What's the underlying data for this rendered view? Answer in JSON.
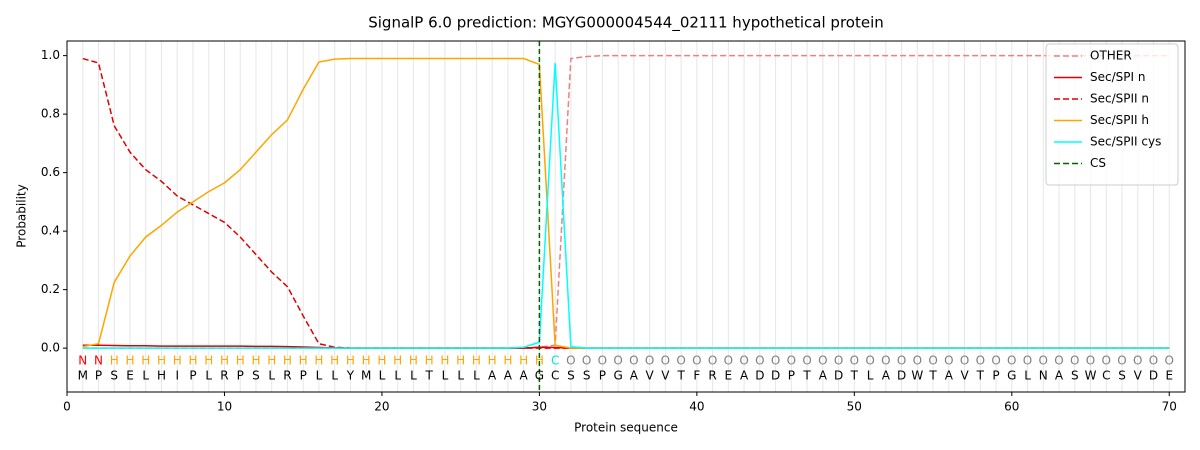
{
  "chart_data": {
    "type": "line",
    "title": "SignalP 6.0 prediction: MGYG000004544_02111 hypothetical protein",
    "xlabel": "Protein sequence",
    "ylabel": "Probability",
    "x": [
      1,
      2,
      3,
      4,
      5,
      6,
      7,
      8,
      9,
      10,
      11,
      12,
      13,
      14,
      15,
      16,
      17,
      18,
      19,
      20,
      21,
      22,
      23,
      24,
      25,
      26,
      27,
      28,
      29,
      30,
      31,
      32,
      33,
      34,
      35,
      36,
      37,
      38,
      39,
      40,
      41,
      42,
      43,
      44,
      45,
      46,
      47,
      48,
      49,
      50,
      51,
      52,
      53,
      54,
      55,
      56,
      57,
      58,
      59,
      60,
      61,
      62,
      63,
      64,
      65,
      66,
      67,
      68,
      69,
      70
    ],
    "xlim": [
      0,
      71
    ],
    "xticks": [
      0,
      10,
      20,
      30,
      40,
      50,
      60,
      70
    ],
    "ylim": [
      -0.15,
      1.05
    ],
    "yticks": [
      {
        "value": 0,
        "label": "0.0"
      },
      0.2,
      0.4,
      0.6,
      0.8,
      {
        "value": 1,
        "label": "1.0"
      }
    ],
    "grid": true,
    "legend": "upper right",
    "series": [
      {
        "name": "OTHER",
        "color": "#f08080",
        "dashed": true,
        "values": [
          0,
          0,
          0,
          0,
          0,
          0,
          0,
          0,
          0,
          0,
          0,
          0,
          0,
          0,
          0,
          0,
          0,
          0,
          0,
          0,
          0,
          0,
          0,
          0,
          0,
          0,
          0,
          0,
          0,
          0.003,
          0.01,
          0.99,
          0.997,
          1,
          1,
          1,
          1,
          1,
          1,
          1,
          1,
          1,
          1,
          1,
          1,
          1,
          1,
          1,
          1,
          1,
          1,
          1,
          1,
          1,
          1,
          1,
          1,
          1,
          1,
          1,
          1,
          1,
          1,
          1,
          1,
          1,
          1,
          1,
          1,
          1
        ]
      },
      {
        "name": "Sec/SPI n",
        "color": "#e00000",
        "dashed": false,
        "values": [
          0.01,
          0.01,
          0.009,
          0.008,
          0.008,
          0.007,
          0.007,
          0.007,
          0.007,
          0.007,
          0.007,
          0.006,
          0.006,
          0.005,
          0.004,
          0.002,
          0.001,
          0,
          0,
          0,
          0,
          0,
          0,
          0,
          0,
          0,
          0,
          0,
          0,
          0.003,
          0.002,
          0,
          0,
          0,
          0,
          0,
          0,
          0,
          0,
          0,
          0,
          0,
          0,
          0,
          0,
          0,
          0,
          0,
          0,
          0,
          0,
          0,
          0,
          0,
          0,
          0,
          0,
          0,
          0,
          0,
          0,
          0,
          0,
          0,
          0,
          0,
          0,
          0,
          0,
          0
        ]
      },
      {
        "name": "Sec/SPII n",
        "color": "#e00000",
        "dashed": true,
        "values": [
          0.99,
          0.975,
          0.76,
          0.67,
          0.61,
          0.57,
          0.52,
          0.49,
          0.46,
          0.43,
          0.38,
          0.32,
          0.26,
          0.21,
          0.11,
          0.015,
          0.003,
          0,
          0,
          0,
          0,
          0,
          0,
          0,
          0,
          0,
          0,
          0,
          0,
          0,
          0,
          0,
          0,
          0,
          0,
          0,
          0,
          0,
          0,
          0,
          0,
          0,
          0,
          0,
          0,
          0,
          0,
          0,
          0,
          0,
          0,
          0,
          0,
          0,
          0,
          0,
          0,
          0,
          0,
          0,
          0,
          0,
          0,
          0,
          0,
          0,
          0,
          0,
          0,
          0
        ]
      },
      {
        "name": "Sec/SPII h",
        "color": "#ffa500",
        "dashed": false,
        "values": [
          0.005,
          0.015,
          0.225,
          0.315,
          0.38,
          0.42,
          0.465,
          0.5,
          0.535,
          0.565,
          0.61,
          0.67,
          0.73,
          0.78,
          0.885,
          0.978,
          0.988,
          0.99,
          0.99,
          0.99,
          0.99,
          0.99,
          0.99,
          0.99,
          0.99,
          0.99,
          0.99,
          0.99,
          0.99,
          0.97,
          0.01,
          0,
          0,
          0,
          0,
          0,
          0,
          0,
          0,
          0,
          0,
          0,
          0,
          0,
          0,
          0,
          0,
          0,
          0,
          0,
          0,
          0,
          0,
          0,
          0,
          0,
          0,
          0,
          0,
          0,
          0,
          0,
          0,
          0,
          0,
          0,
          0,
          0,
          0,
          0
        ]
      },
      {
        "name": "Sec/SPII cys",
        "color": "#00ffff",
        "dashed": false,
        "values": [
          0,
          0,
          0,
          0,
          0,
          0,
          0,
          0,
          0,
          0,
          0,
          0,
          0,
          0,
          0,
          0,
          0,
          0,
          0,
          0,
          0,
          0,
          0,
          0,
          0,
          0,
          0,
          0,
          0.003,
          0.02,
          0.975,
          0.005,
          0,
          0,
          0,
          0,
          0,
          0,
          0,
          0,
          0,
          0,
          0,
          0,
          0,
          0,
          0,
          0,
          0,
          0,
          0,
          0,
          0,
          0,
          0,
          0,
          0,
          0,
          0,
          0,
          0,
          0,
          0,
          0,
          0,
          0,
          0,
          0,
          0,
          0
        ]
      }
    ],
    "vlines": [
      {
        "name": "CS",
        "x": 30,
        "color": "#006400",
        "dashed": true
      }
    ],
    "region_labels": [
      "N",
      "N",
      "H",
      "H",
      "H",
      "H",
      "H",
      "H",
      "H",
      "H",
      "H",
      "H",
      "H",
      "H",
      "H",
      "H",
      "H",
      "H",
      "H",
      "H",
      "H",
      "H",
      "H",
      "H",
      "H",
      "H",
      "H",
      "H",
      "H",
      "H",
      "C",
      "O",
      "O",
      "O",
      "O",
      "O",
      "O",
      "O",
      "O",
      "O",
      "O",
      "O",
      "O",
      "O",
      "O",
      "O",
      "O",
      "O",
      "O",
      "O",
      "O",
      "O",
      "O",
      "O",
      "O",
      "O",
      "O",
      "O",
      "O",
      "O",
      "O",
      "O",
      "O",
      "O",
      "O",
      "O",
      "O",
      "O",
      "O",
      "O"
    ],
    "region_colors": {
      "N": "#ff0000",
      "H": "#ffa500",
      "C": "#00e5e5",
      "O": "#808080"
    },
    "residues": [
      "M",
      "P",
      "S",
      "E",
      "L",
      "H",
      "I",
      "P",
      "L",
      "R",
      "P",
      "S",
      "L",
      "R",
      "P",
      "L",
      "L",
      "Y",
      "M",
      "L",
      "L",
      "L",
      "T",
      "L",
      "L",
      "L",
      "A",
      "A",
      "A",
      "G",
      "C",
      "S",
      "S",
      "P",
      "G",
      "A",
      "V",
      "V",
      "T",
      "F",
      "R",
      "E",
      "A",
      "D",
      "D",
      "P",
      "T",
      "A",
      "D",
      "T",
      "L",
      "A",
      "D",
      "W",
      "T",
      "A",
      "V",
      "T",
      "P",
      "G",
      "L",
      "N",
      "A",
      "S",
      "W",
      "C",
      "S",
      "V",
      "D",
      "E"
    ]
  }
}
